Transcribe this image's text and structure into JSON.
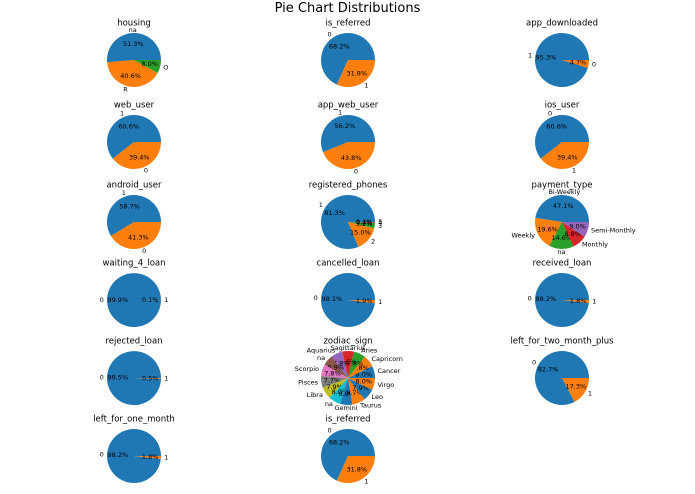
{
  "figure": {
    "title": "Pie Chart Distributions"
  },
  "colors": [
    "#1f77b4",
    "#ff7f0e",
    "#2ca02c",
    "#d62728",
    "#9467bd",
    "#8c564b",
    "#e377c2",
    "#7f7f7f",
    "#bcbd22",
    "#17becf",
    "#1f77b4",
    "#ff7f0e"
  ],
  "chart_data": [
    {
      "type": "pie",
      "title": "housing",
      "labels": [
        "na",
        "R",
        "O"
      ],
      "values": [
        51.3,
        40.6,
        8.0
      ],
      "pct_labels": [
        "51.3%",
        "40.6%",
        "8.0%"
      ]
    },
    {
      "type": "pie",
      "title": "is_referred",
      "labels": [
        "0",
        "1"
      ],
      "values": [
        68.2,
        31.8
      ],
      "pct_labels": [
        "68.2%",
        "31.8%"
      ]
    },
    {
      "type": "pie",
      "title": "app_downloaded",
      "labels": [
        "1",
        "0"
      ],
      "values": [
        95.3,
        4.7
      ],
      "pct_labels": [
        "95.3%",
        "4.7%"
      ]
    },
    {
      "type": "pie",
      "title": "web_user",
      "labels": [
        "1",
        "0"
      ],
      "values": [
        60.6,
        39.4
      ],
      "pct_labels": [
        "60.6%",
        "39.4%"
      ]
    },
    {
      "type": "pie",
      "title": "app_web_user",
      "labels": [
        "1",
        "0"
      ],
      "values": [
        56.2,
        43.8
      ],
      "pct_labels": [
        "56.2%",
        "43.8%"
      ]
    },
    {
      "type": "pie",
      "title": "ios_user",
      "labels": [
        "0",
        "1"
      ],
      "values": [
        60.6,
        39.4
      ],
      "pct_labels": [
        "60.6%",
        "39.4%"
      ]
    },
    {
      "type": "pie",
      "title": "android_user",
      "labels": [
        "1",
        "0"
      ],
      "values": [
        58.7,
        41.3
      ],
      "pct_labels": [
        "58.7%",
        "41.3%"
      ]
    },
    {
      "type": "pie",
      "title": "registered_phones",
      "labels": [
        "1",
        "2",
        "3",
        "4",
        "5"
      ],
      "values": [
        81.3,
        15.0,
        3.2,
        0.4,
        0.1
      ],
      "pct_labels": [
        "81.3%",
        "15.0%",
        "3.2%",
        "0.4%",
        "0.1%"
      ]
    },
    {
      "type": "pie",
      "title": "payment_type",
      "labels": [
        "Bi-Weekly",
        "Weekly",
        "na",
        "Monthly",
        "Semi-Monthly"
      ],
      "values": [
        47.1,
        19.6,
        14.6,
        8.8,
        9.0
      ],
      "pct_labels": [
        "47.1%",
        "19.6%",
        "14.6%",
        "8.8%",
        "9.0%"
      ]
    },
    {
      "type": "pie",
      "title": "waiting_4_loan",
      "labels": [
        "0",
        "1"
      ],
      "values": [
        99.9,
        0.1
      ],
      "pct_labels": [
        "99.9%",
        "0.1%"
      ]
    },
    {
      "type": "pie",
      "title": "cancelled_loan",
      "labels": [
        "0",
        "1"
      ],
      "values": [
        98.1,
        1.9
      ],
      "pct_labels": [
        "98.1%",
        "1.9%"
      ]
    },
    {
      "type": "pie",
      "title": "received_loan",
      "labels": [
        "0",
        "1"
      ],
      "values": [
        98.2,
        1.8
      ],
      "pct_labels": [
        "98.2%",
        "1.8%"
      ]
    },
    {
      "type": "pie",
      "title": "rejected_loan",
      "labels": [
        "0",
        "1"
      ],
      "values": [
        99.5,
        0.5
      ],
      "pct_labels": [
        "99.5%",
        "0.5%"
      ]
    },
    {
      "type": "pie",
      "title": "zodiac_sign",
      "labels": [
        "Cancer",
        "Capricorn",
        "Aries",
        "Sagittarius",
        "Aquarius",
        "na",
        "Scorpio",
        "Pisces",
        "Libra",
        "na",
        "Gemini",
        "Taurus",
        "Leo",
        "Virgo"
      ],
      "values": [
        8.0,
        7.8,
        7.8,
        7.6,
        7.8,
        6.9,
        7.8,
        7.7,
        7.9,
        8.0,
        8.0,
        8.7,
        7.9,
        8.0
      ],
      "pct_labels": [
        "8.0%",
        "7.8%",
        "7.8%",
        "7.6%",
        "7.8%",
        "6.9%",
        "7.8%",
        "7.7%",
        "7.9%",
        "8.0%",
        "8.0%",
        "8.7%",
        "7.9%",
        "8.0%"
      ]
    },
    {
      "type": "pie",
      "title": "left_for_two_month_plus",
      "labels": [
        "0",
        "1"
      ],
      "values": [
        82.7,
        17.3
      ],
      "pct_labels": [
        "82.7%",
        "17.3%"
      ]
    },
    {
      "type": "pie",
      "title": "left_for_one_month",
      "labels": [
        "0",
        "1"
      ],
      "values": [
        98.2,
        1.8
      ],
      "pct_labels": [
        "98.2%",
        "1.8%"
      ]
    },
    {
      "type": "pie",
      "title": "is_referred",
      "labels": [
        "0",
        "1"
      ],
      "values": [
        68.2,
        31.8
      ],
      "pct_labels": [
        "68.2%",
        "31.8%"
      ]
    }
  ]
}
